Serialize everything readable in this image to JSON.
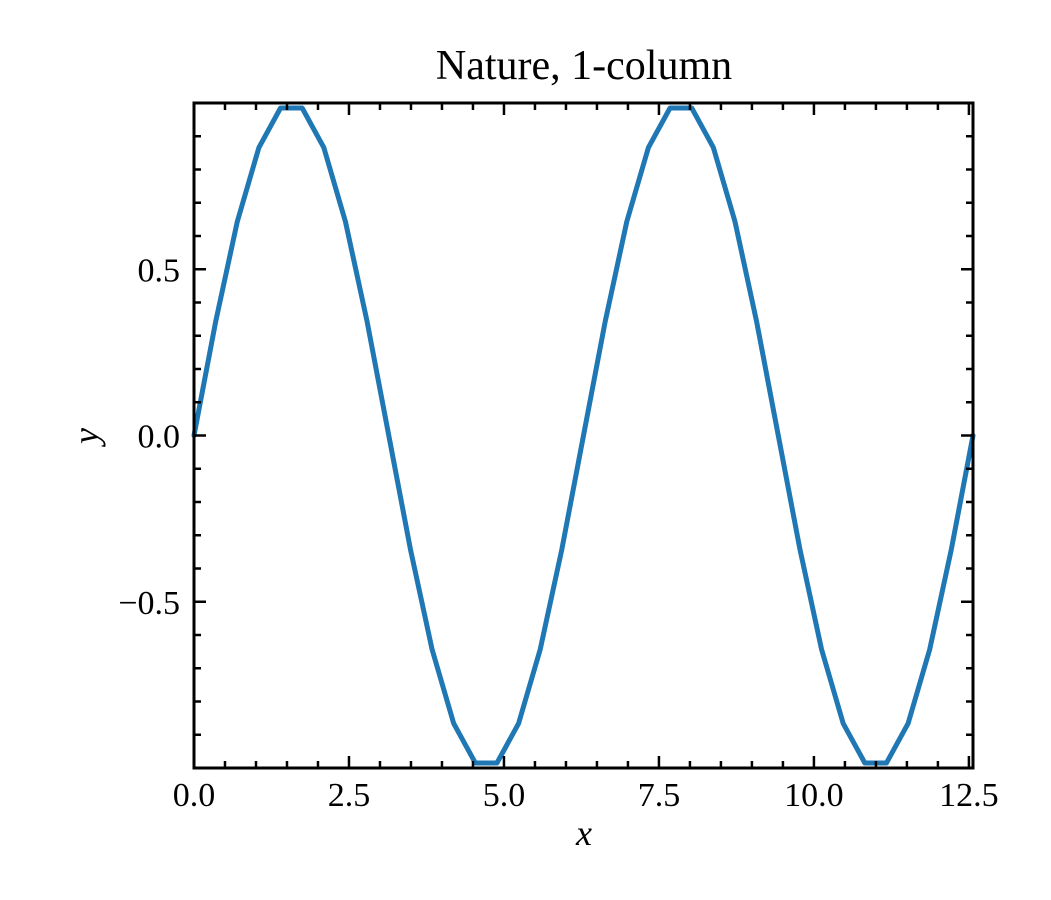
{
  "chart_data": {
    "type": "line",
    "title": "Nature, 1-column",
    "xlabel": "x",
    "ylabel": "y",
    "xlim": [
      0,
      12.566
    ],
    "ylim": [
      -1,
      1
    ],
    "x_ticks": [
      0,
      2.5,
      5,
      7.5,
      10,
      12.5
    ],
    "x_tick_labels": [
      "0.0",
      "2.5",
      "5.0",
      "7.5",
      "10.0",
      "12.5"
    ],
    "x_minor_step": 0.5,
    "y_ticks": [
      -0.5,
      0,
      0.5
    ],
    "y_tick_labels": [
      "−0.5",
      "0.0",
      "0.5"
    ],
    "y_minor_step": 0.1,
    "ticks_direction": "in",
    "ticks_on_all_sides": true,
    "grid": false,
    "series": [
      {
        "color": "#1f77b4",
        "x": [
          0.0,
          0.349,
          0.698,
          1.047,
          1.396,
          1.745,
          2.094,
          2.443,
          2.793,
          3.142,
          3.491,
          3.84,
          4.189,
          4.538,
          4.887,
          5.236,
          5.585,
          5.934,
          6.283,
          6.632,
          6.981,
          7.33,
          7.679,
          8.029,
          8.378,
          8.727,
          9.076,
          9.425,
          9.774,
          10.123,
          10.472,
          10.821,
          11.17,
          11.519,
          11.868,
          12.217,
          12.566
        ],
        "y": [
          0.0,
          0.342,
          0.643,
          0.866,
          0.985,
          0.985,
          0.866,
          0.643,
          0.342,
          0.0,
          -0.342,
          -0.643,
          -0.866,
          -0.985,
          -0.985,
          -0.866,
          -0.643,
          -0.342,
          0.0,
          0.342,
          0.643,
          0.866,
          0.985,
          0.985,
          0.866,
          0.643,
          0.342,
          0.0,
          -0.342,
          -0.643,
          -0.866,
          -0.985,
          -0.985,
          -0.866,
          -0.643,
          -0.342,
          0.0
        ]
      }
    ]
  }
}
